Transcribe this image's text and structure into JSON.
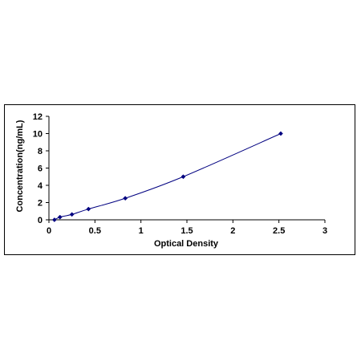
{
  "chart_data": {
    "type": "scatter",
    "title": "",
    "xlabel": "Optical Density",
    "ylabel": "Concentration(ng/mL)",
    "xlim": [
      0,
      3
    ],
    "ylim": [
      0,
      12
    ],
    "x_ticks": [
      0,
      0.5,
      1,
      1.5,
      2,
      2.5,
      3
    ],
    "x_tick_labels": [
      "0",
      "0.5",
      "1",
      "1.5",
      "2",
      "2.5",
      "3"
    ],
    "y_ticks": [
      0,
      2,
      4,
      6,
      8,
      10,
      12
    ],
    "y_tick_labels": [
      "0",
      "2",
      "4",
      "6",
      "8",
      "10",
      "12"
    ],
    "grid": false,
    "legend": "none",
    "series": [
      {
        "points": [
          {
            "x": 0.06,
            "y": 0
          },
          {
            "x": 0.12,
            "y": 0.313
          },
          {
            "x": 0.25,
            "y": 0.625
          },
          {
            "x": 0.43,
            "y": 1.25
          },
          {
            "x": 0.83,
            "y": 2.5
          },
          {
            "x": 1.46,
            "y": 5
          },
          {
            "x": 2.52,
            "y": 10
          }
        ],
        "color": "#000080",
        "fit_line": true
      }
    ]
  }
}
